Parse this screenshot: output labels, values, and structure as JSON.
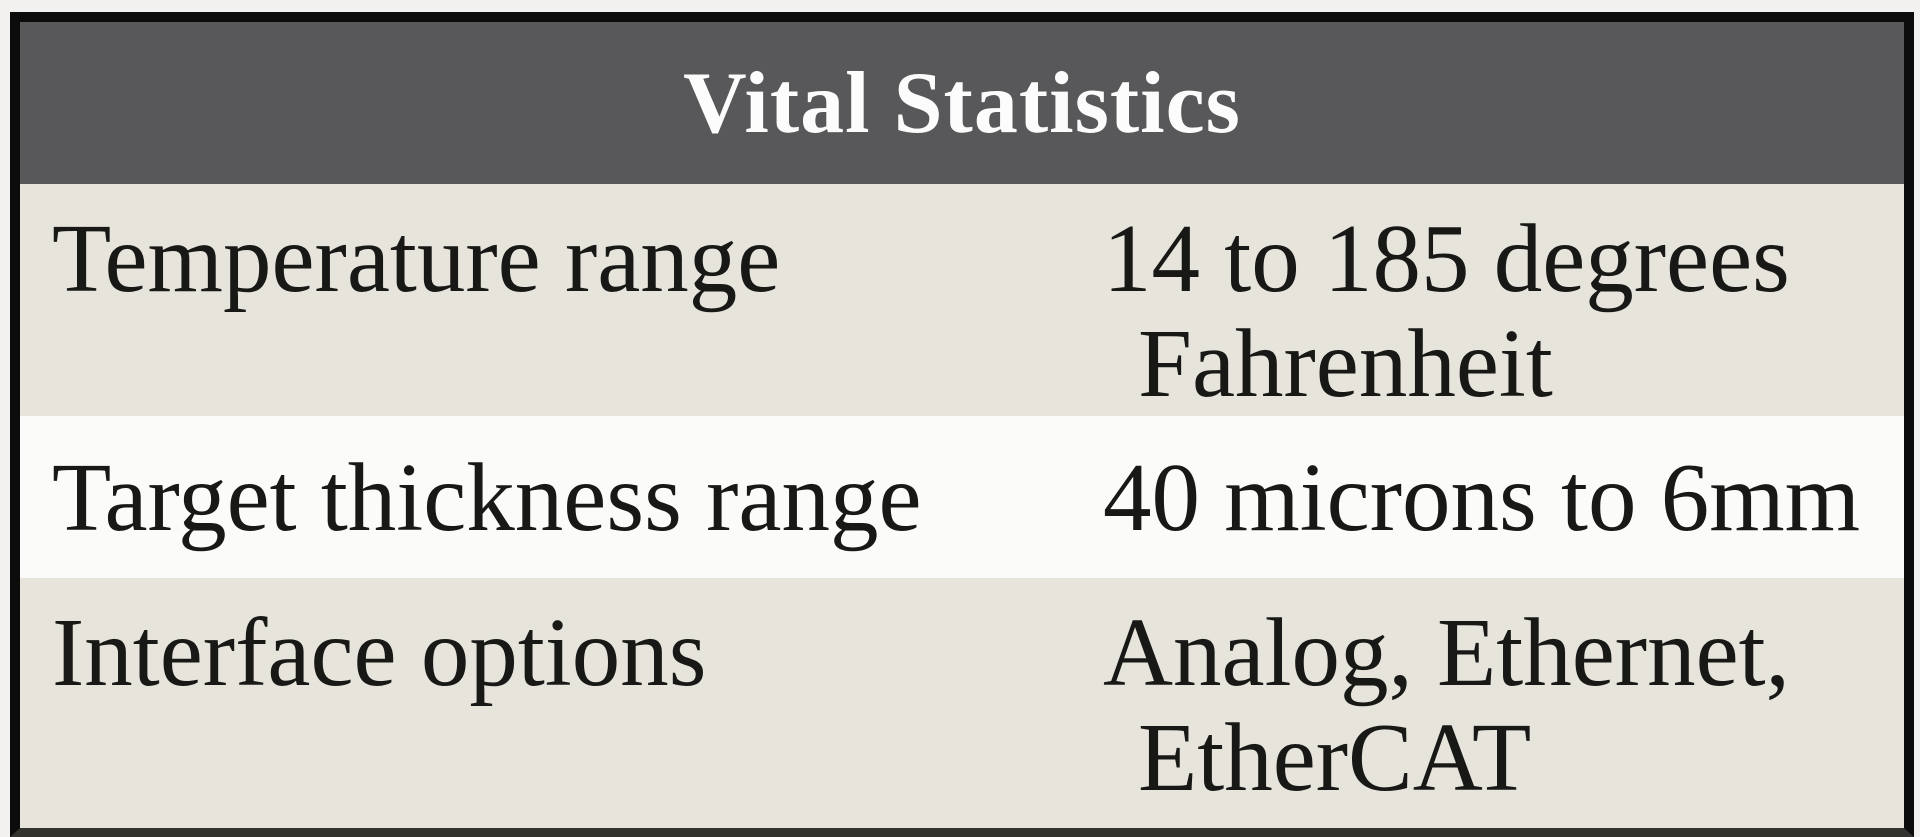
{
  "table": {
    "title": "Vital Statistics",
    "columns": [
      "label",
      "value"
    ],
    "rows": [
      {
        "label": "Temperature range",
        "value": "14 to 185 degrees Fahrenheit"
      },
      {
        "label": "Target thickness range",
        "value": "40 microns to 6mm"
      },
      {
        "label": "Interface options",
        "value": "Analog, Ethernet, EtherCAT"
      }
    ]
  },
  "colors": {
    "header_bg": "#58585a",
    "header_text": "#fcfcfc",
    "row_beige": "#e6e4db",
    "row_white": "#fbfbf9",
    "body_text": "#181816",
    "outer_border": "#0c0c0c",
    "bottom_border": "#32322f",
    "page_margin": "#f2f1ef"
  }
}
